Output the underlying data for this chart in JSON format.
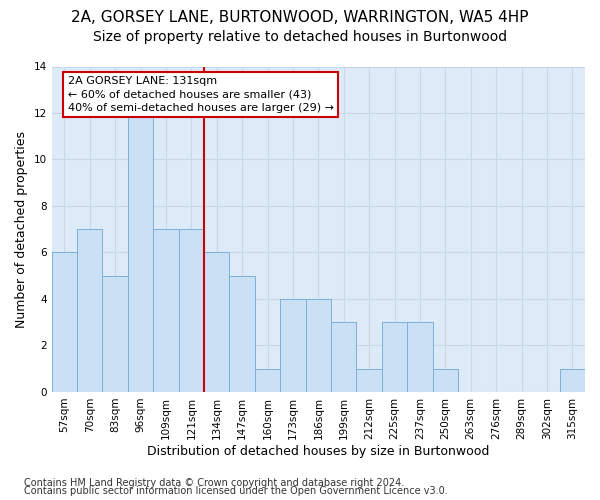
{
  "title1": "2A, GORSEY LANE, BURTONWOOD, WARRINGTON, WA5 4HP",
  "title2": "Size of property relative to detached houses in Burtonwood",
  "xlabel": "Distribution of detached houses by size in Burtonwood",
  "ylabel": "Number of detached properties",
  "categories": [
    "57sqm",
    "70sqm",
    "83sqm",
    "96sqm",
    "109sqm",
    "121sqm",
    "134sqm",
    "147sqm",
    "160sqm",
    "173sqm",
    "186sqm",
    "199sqm",
    "212sqm",
    "225sqm",
    "237sqm",
    "250sqm",
    "263sqm",
    "276sqm",
    "289sqm",
    "302sqm",
    "315sqm"
  ],
  "values": [
    6,
    7,
    5,
    12,
    7,
    7,
    6,
    5,
    1,
    4,
    4,
    3,
    1,
    3,
    3,
    1,
    0,
    0,
    0,
    0,
    1
  ],
  "bar_color": "#cce0f5",
  "bar_edgecolor": "#7ab0d9",
  "vline_x": 5.5,
  "vline_color": "#cc0000",
  "annotation_text": "2A GORSEY LANE: 131sqm\n← 60% of detached houses are smaller (43)\n40% of semi-detached houses are larger (29) →",
  "annotation_box_edgecolor": "#cc0000",
  "ylim": [
    0,
    14
  ],
  "yticks": [
    0,
    2,
    4,
    6,
    8,
    10,
    12,
    14
  ],
  "footer1": "Contains HM Land Registry data © Crown copyright and database right 2024.",
  "footer2": "Contains public sector information licensed under the Open Government Licence v3.0.",
  "fig_bg_color": "#ffffff",
  "plot_bg_color": "#ddeaf7",
  "grid_color": "#c8d8ea",
  "title_fontsize": 11,
  "subtitle_fontsize": 10,
  "axis_label_fontsize": 9,
  "tick_fontsize": 7.5,
  "annotation_fontsize": 8,
  "footer_fontsize": 7
}
